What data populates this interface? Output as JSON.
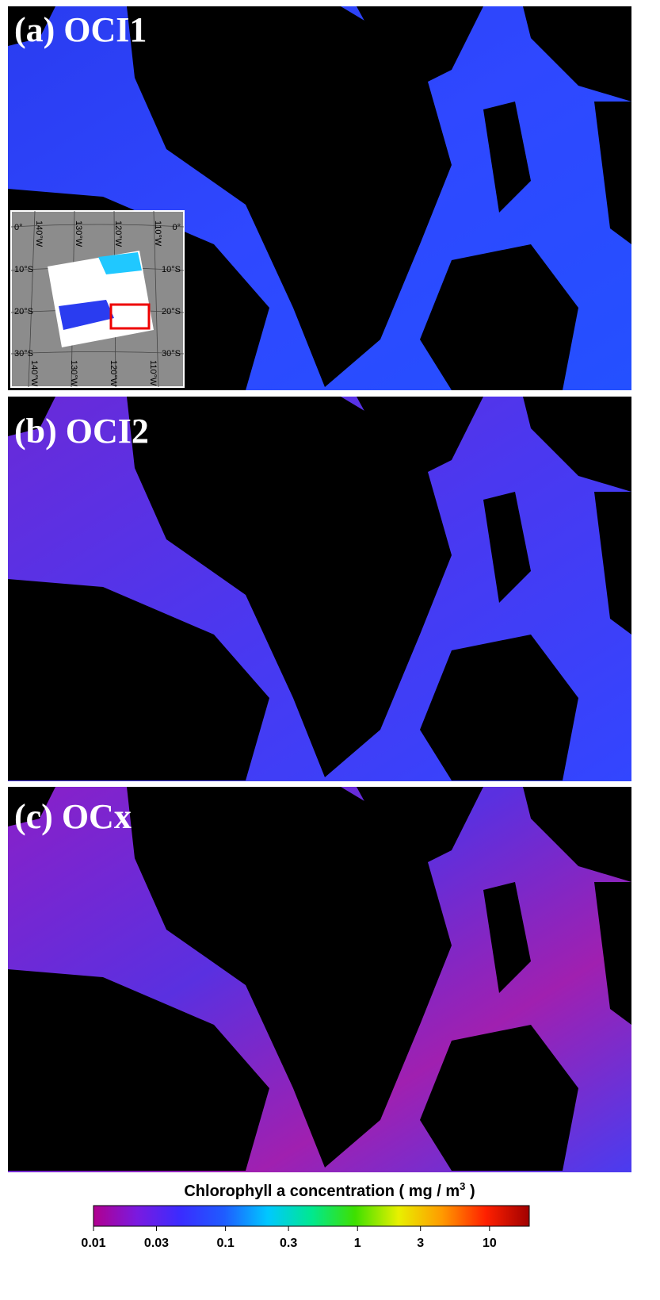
{
  "panels": [
    {
      "label": "(a) OCI1"
    },
    {
      "label": "(b) OCI2"
    },
    {
      "label": "(c) OCx"
    }
  ],
  "inset": {
    "lon_labels": [
      "140°W",
      "130°W",
      "120°W",
      "110°W"
    ],
    "lat_labels": [
      "0°",
      "10°S",
      "20°S",
      "30°S"
    ]
  },
  "colorbar": {
    "title": "Chlorophyll a concentration ( mg / m",
    "title_sup": "3",
    "title_end": " )",
    "scale": "log",
    "lim": [
      0.01,
      20
    ],
    "ticks": [
      0.01,
      0.03,
      0.1,
      0.3,
      1,
      3,
      10
    ],
    "colormap": [
      "#b0008f",
      "#7a1ae0",
      "#3a2cff",
      "#1f5cff",
      "#00c8ff",
      "#00e890",
      "#3ee000",
      "#e8f000",
      "#ff9a00",
      "#ff2000",
      "#a00000"
    ]
  }
}
